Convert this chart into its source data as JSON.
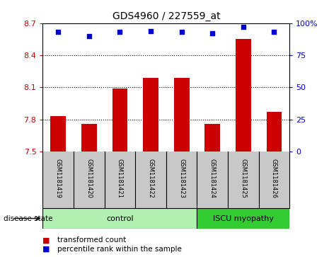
{
  "title": "GDS4960 / 227559_at",
  "samples": [
    "GSM1181419",
    "GSM1181420",
    "GSM1181421",
    "GSM1181422",
    "GSM1181423",
    "GSM1181424",
    "GSM1181425",
    "GSM1181426"
  ],
  "transformed_counts": [
    7.83,
    7.76,
    8.09,
    8.19,
    8.19,
    7.76,
    8.55,
    7.87
  ],
  "percentile_ranks": [
    93,
    90,
    93,
    94,
    93,
    92,
    97,
    93
  ],
  "ymin": 7.5,
  "ymax": 8.7,
  "yticks": [
    7.5,
    7.8,
    8.1,
    8.4,
    8.7
  ],
  "ytick_labels": [
    "7.5",
    "7.8",
    "8.1",
    "8.4",
    "8.7"
  ],
  "right_yticks": [
    0,
    25,
    50,
    75,
    100
  ],
  "right_ytick_labels": [
    "0",
    "25",
    "50",
    "75",
    "100%"
  ],
  "bar_color": "#cc0000",
  "scatter_color": "#0000cc",
  "n_control": 5,
  "n_disease": 3,
  "control_label": "control",
  "disease_label": "ISCU myopathy",
  "disease_state_label": "disease state",
  "legend_bar_label": "transformed count",
  "legend_scatter_label": "percentile rank within the sample",
  "control_color": "#b2f0b2",
  "disease_color": "#33cc33",
  "grid_color": "black",
  "title_fontsize": 10,
  "label_fontsize": 8,
  "tick_fontsize": 8,
  "sample_fontsize": 6,
  "background_label": "#c8c8c8"
}
